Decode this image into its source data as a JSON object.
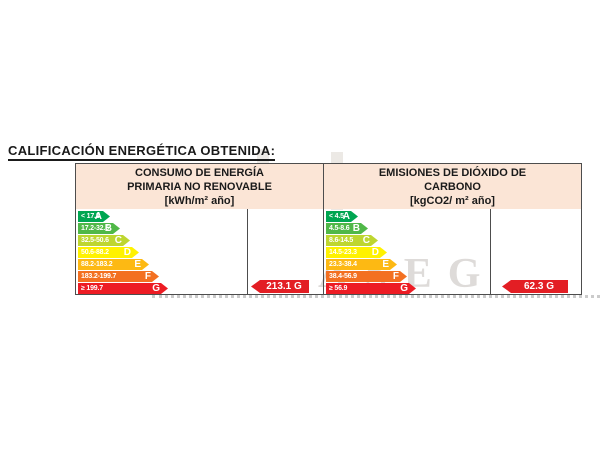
{
  "title": "CALIFICACIÓN ENERGÉTICA OBTENIDA:",
  "watermark": "ASEG",
  "colors": {
    "header_bg": "#fbe5d6",
    "border": "#4d4d4d",
    "value_arrow": "#e31e24",
    "rating_A": "#00a651",
    "rating_B": "#50b848",
    "rating_C": "#bed630",
    "rating_D": "#fff200",
    "rating_E": "#fdb913",
    "rating_F": "#f37021",
    "rating_G": "#ed1c24"
  },
  "panels": [
    {
      "id": "consumo",
      "header": [
        "CONSUMO DE ENERGÍA",
        "PRIMARIA NO RENOVABLE",
        "[kWh/m² año]"
      ],
      "ratings": [
        {
          "letter": "A",
          "range": "< 17.2",
          "color": "#00a651"
        },
        {
          "letter": "B",
          "range": "17.2-32.5",
          "color": "#50b848"
        },
        {
          "letter": "C",
          "range": "32.5-50.6",
          "color": "#bed630"
        },
        {
          "letter": "D",
          "range": "50.6-88.2",
          "color": "#fff200"
        },
        {
          "letter": "E",
          "range": "88.2-183.2",
          "color": "#fdb913"
        },
        {
          "letter": "F",
          "range": "183.2-199.7",
          "color": "#f37021"
        },
        {
          "letter": "G",
          "range": "≥ 199.7",
          "color": "#ed1c24"
        }
      ],
      "value_label": "213.1 G"
    },
    {
      "id": "emisiones",
      "header": [
        "EMISIONES DE DIÓXIDO DE",
        "CARBONO",
        "[kgCO2/ m² año]"
      ],
      "ratings": [
        {
          "letter": "A",
          "range": "< 4.5",
          "color": "#00a651"
        },
        {
          "letter": "B",
          "range": "4.5-8.6",
          "color": "#50b848"
        },
        {
          "letter": "C",
          "range": "8.6-14.5",
          "color": "#bed630"
        },
        {
          "letter": "D",
          "range": "14.5-23.3",
          "color": "#fff200"
        },
        {
          "letter": "E",
          "range": "23.3-38.4",
          "color": "#fdb913"
        },
        {
          "letter": "F",
          "range": "38.4-56.9",
          "color": "#f37021"
        },
        {
          "letter": "G",
          "range": "≥ 56.9",
          "color": "#ed1c24"
        }
      ],
      "value_label": "62.3 G"
    }
  ],
  "chart_data": [
    {
      "type": "bar",
      "title": "CONSUMO DE ENERGÍA PRIMARIA NO RENOVABLE",
      "unit": "kWh/m² año",
      "categories": [
        "A",
        "B",
        "C",
        "D",
        "E",
        "F",
        "G"
      ],
      "ranges": [
        "< 17.2",
        "17.2-32.5",
        "32.5-50.6",
        "50.6-88.2",
        "88.2-183.2",
        "183.2-199.7",
        "≥ 199.7"
      ],
      "bar_colors": [
        "#00a651",
        "#50b848",
        "#bed630",
        "#fff200",
        "#fdb913",
        "#f37021",
        "#ed1c24"
      ],
      "obtained_value": 213.1,
      "obtained_rating": "G",
      "legend_position": "none"
    },
    {
      "type": "bar",
      "title": "EMISIONES DE DIÓXIDO DE CARBONO",
      "unit": "kgCO2/ m² año",
      "categories": [
        "A",
        "B",
        "C",
        "D",
        "E",
        "F",
        "G"
      ],
      "ranges": [
        "< 4.5",
        "4.5-8.6",
        "8.6-14.5",
        "14.5-23.3",
        "23.3-38.4",
        "38.4-56.9",
        "≥ 56.9"
      ],
      "bar_colors": [
        "#00a651",
        "#50b848",
        "#bed630",
        "#fff200",
        "#fdb913",
        "#f37021",
        "#ed1c24"
      ],
      "obtained_value": 62.3,
      "obtained_rating": "G",
      "legend_position": "none"
    }
  ]
}
